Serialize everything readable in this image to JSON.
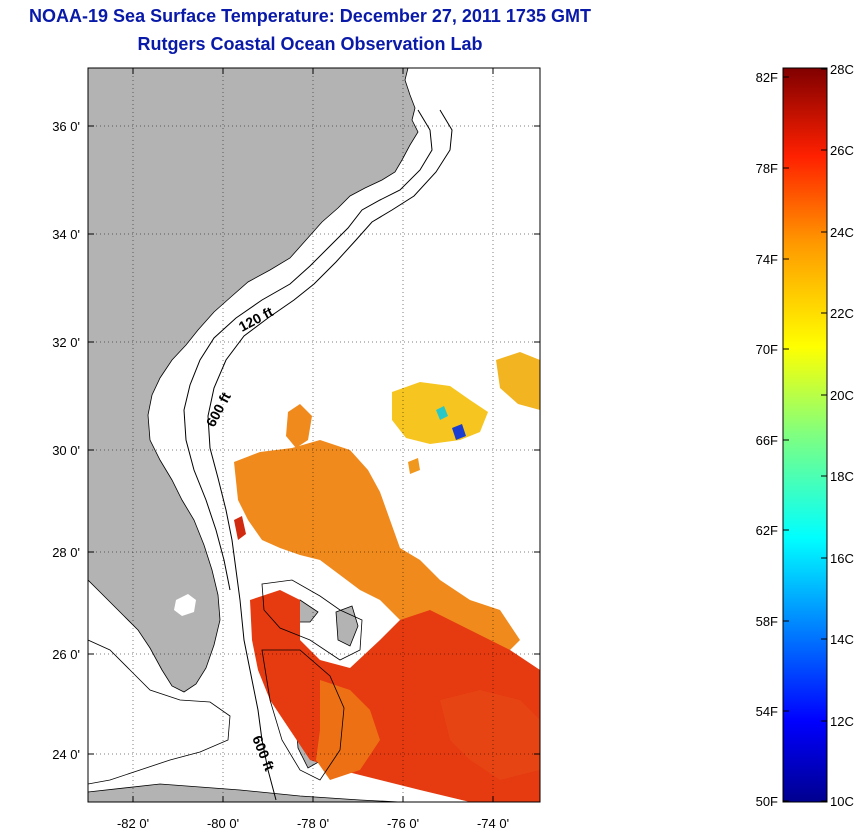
{
  "title": "NOAA-19 Sea Surface Temperature:  December 27, 2011 1735 GMT",
  "subtitle": "Rutgers Coastal Ocean Observation Lab",
  "map": {
    "lat_ticks": [
      "36 0'",
      "34 0'",
      "32 0'",
      "30 0'",
      "28 0'",
      "26 0'",
      "24 0'"
    ],
    "lon_ticks": [
      "-82 0'",
      "-80 0'",
      "-78 0'",
      "-76 0'",
      "-74 0'"
    ],
    "contour_labels": [
      "120 ft",
      "600 ft",
      "600 ft"
    ],
    "colors": {
      "land": "#b3b3b3",
      "sst_orange": "#f08a1c",
      "sst_red": "#e63a10",
      "sst_yellow": "#f7c520",
      "sst_blue": "#1a3cd0"
    }
  },
  "colorbar": {
    "fahrenheit": [
      "82F",
      "78F",
      "74F",
      "70F",
      "66F",
      "62F",
      "58F",
      "54F",
      "50F"
    ],
    "celsius": [
      "28C",
      "26C",
      "24C",
      "22C",
      "20C",
      "18C",
      "16C",
      "14C",
      "12C",
      "10C"
    ],
    "range_c": [
      10,
      28
    ],
    "range_f": [
      50,
      82.4
    ]
  }
}
